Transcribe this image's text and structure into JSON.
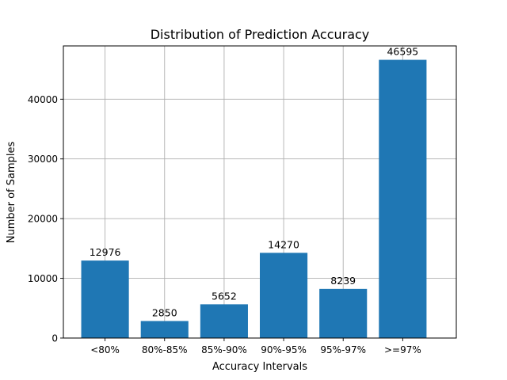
{
  "chart_data": {
    "type": "bar",
    "title": "Distribution of Prediction Accuracy",
    "xlabel": "Accuracy Intervals",
    "ylabel": "Number of Samples",
    "categories": [
      "<80%",
      "80%-85%",
      "85%-90%",
      "90%-95%",
      "95%-97%",
      ">=97%"
    ],
    "values": [
      12976,
      2850,
      5652,
      14270,
      8239,
      46595
    ],
    "data_labels": [
      "12976",
      "2850",
      "5652",
      "14270",
      "8239",
      "46595"
    ],
    "ylim": [
      0,
      48925
    ],
    "yticks": [
      0,
      10000,
      20000,
      30000,
      40000
    ],
    "ytick_labels": [
      "0",
      "10000",
      "20000",
      "30000",
      "40000"
    ],
    "grid": true,
    "bar_color": "#1f77b4"
  }
}
